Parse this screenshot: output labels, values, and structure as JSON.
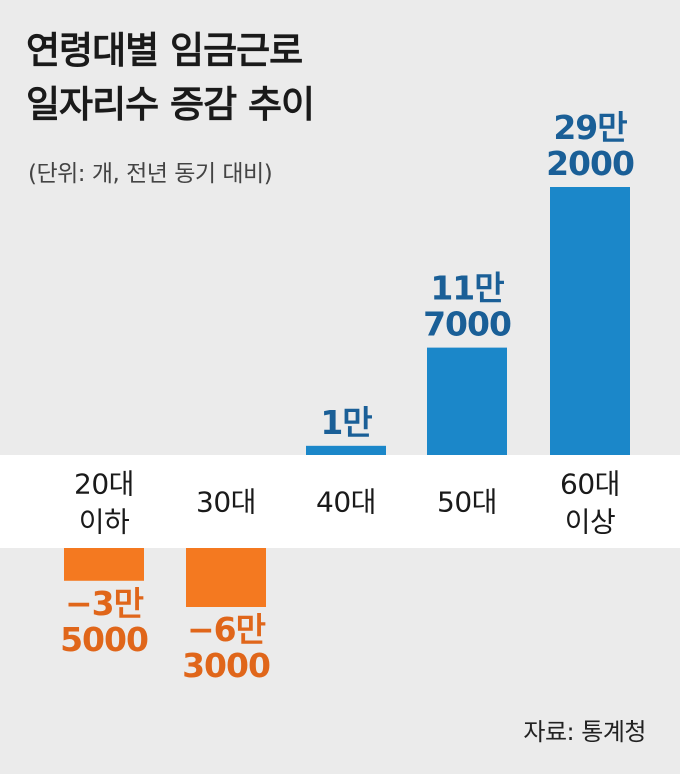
{
  "title_line1": "연령대별 임금근로",
  "title_line2": "일자리수 증감 추이",
  "unit_note": "(단위: 개, 전년 동기 대비)",
  "source": "자료: 통계청",
  "colors": {
    "positive": "#1b87c9",
    "negative": "#f47920",
    "positive_text": "#1a5f97",
    "negative_text": "#e0661a",
    "band": "#ffffff",
    "background": "#ebebeb"
  },
  "chart_data": {
    "type": "bar",
    "categories": [
      "20대 이하",
      "30대",
      "40대",
      "50대",
      "60대 이상"
    ],
    "category_lines": [
      [
        "20대",
        "이하"
      ],
      [
        "30대"
      ],
      [
        "40대"
      ],
      [
        "50대"
      ],
      [
        "60대",
        "이상"
      ]
    ],
    "values": [
      -35000,
      -63000,
      10000,
      117000,
      292000
    ],
    "value_labels": [
      [
        "−3만",
        "5000"
      ],
      [
        "−6만",
        "3000"
      ],
      [
        "1만"
      ],
      [
        "11만",
        "7000"
      ],
      [
        "29만",
        "2000"
      ]
    ],
    "ylabel": "",
    "xlabel": "",
    "grid": false,
    "legend": "none"
  }
}
